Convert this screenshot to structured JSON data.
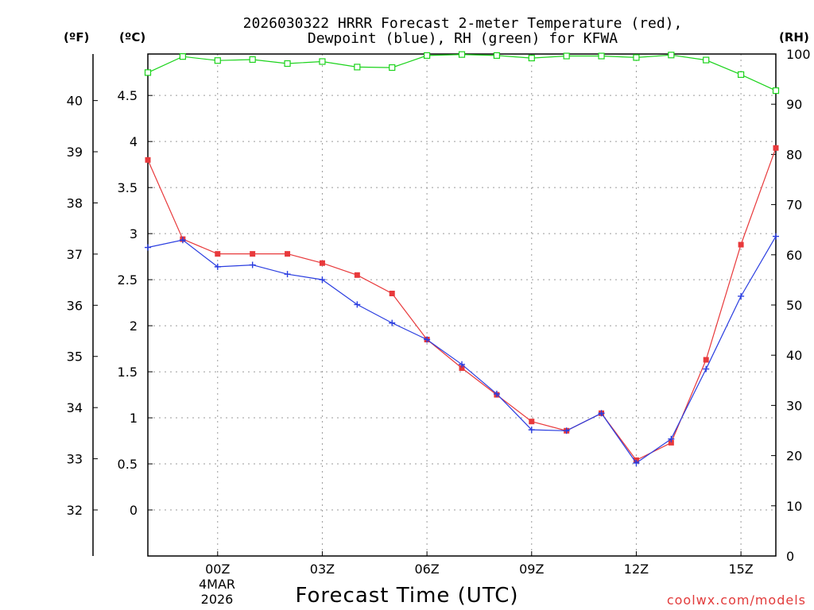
{
  "chart_data": {
    "type": "line",
    "title_line1": "2026030322 HRRR Forecast 2-meter Temperature (red),",
    "title_line2": "Dewpoint (blue), RH (green) for KFWA",
    "xlabel": "Forecast Time (UTC)",
    "credit": "coolwx.com/models",
    "unit_f": "(ºF)",
    "unit_c": "(ºC)",
    "unit_rh": "(RH)",
    "date_line1": "4MAR",
    "date_line2": "2026",
    "hours": [
      -2,
      -1,
      0,
      1,
      2,
      3,
      4,
      5,
      6,
      7,
      8,
      9,
      10,
      11,
      12,
      13,
      14,
      15,
      16
    ],
    "x_ticks": [
      {
        "hour": 0,
        "label": "00Z"
      },
      {
        "hour": 3,
        "label": "03Z"
      },
      {
        "hour": 6,
        "label": "06Z"
      },
      {
        "hour": 9,
        "label": "09Z"
      },
      {
        "hour": 12,
        "label": "12Z"
      },
      {
        "hour": 15,
        "label": "15Z"
      }
    ],
    "xlim": [
      -2,
      16
    ],
    "ylim_c": [
      -0.5,
      4.95
    ],
    "ylim_f": [
      31.1,
      40.91
    ],
    "ylim_rh": [
      0,
      100
    ],
    "c_ticks": [
      "0",
      "0.5",
      "1",
      "1.5",
      "2",
      "2.5",
      "3",
      "3.5",
      "4",
      "4.5"
    ],
    "f_ticks": [
      "32",
      "33",
      "34",
      "35",
      "36",
      "37",
      "38",
      "39",
      "40"
    ],
    "rh_ticks": [
      "0",
      "10",
      "20",
      "30",
      "40",
      "50",
      "60",
      "70",
      "80",
      "90",
      "100"
    ],
    "series": [
      {
        "name": "Temperature",
        "color": "#e8393b",
        "marker": "square",
        "values": [
          3.8,
          2.94,
          2.78,
          2.78,
          2.78,
          2.68,
          2.55,
          2.35,
          1.85,
          1.54,
          1.25,
          0.96,
          0.86,
          1.05,
          0.54,
          0.73,
          1.63,
          2.88,
          3.93
        ]
      },
      {
        "name": "Dewpoint",
        "color": "#2a3de0",
        "marker": "plus",
        "values": [
          2.85,
          2.93,
          2.64,
          2.66,
          2.56,
          2.5,
          2.23,
          2.03,
          1.85,
          1.58,
          1.26,
          0.87,
          0.86,
          1.05,
          0.51,
          0.77,
          1.53,
          2.32,
          2.97
        ]
      },
      {
        "name": "RH",
        "color": "#1bd31b",
        "marker": "open-square",
        "axis": "rh",
        "values": [
          96.3,
          99.5,
          98.7,
          98.9,
          98.1,
          98.5,
          97.4,
          97.3,
          99.7,
          99.9,
          99.7,
          99.2,
          99.6,
          99.6,
          99.3,
          99.8,
          98.8,
          95.9,
          92.7
        ]
      }
    ]
  }
}
